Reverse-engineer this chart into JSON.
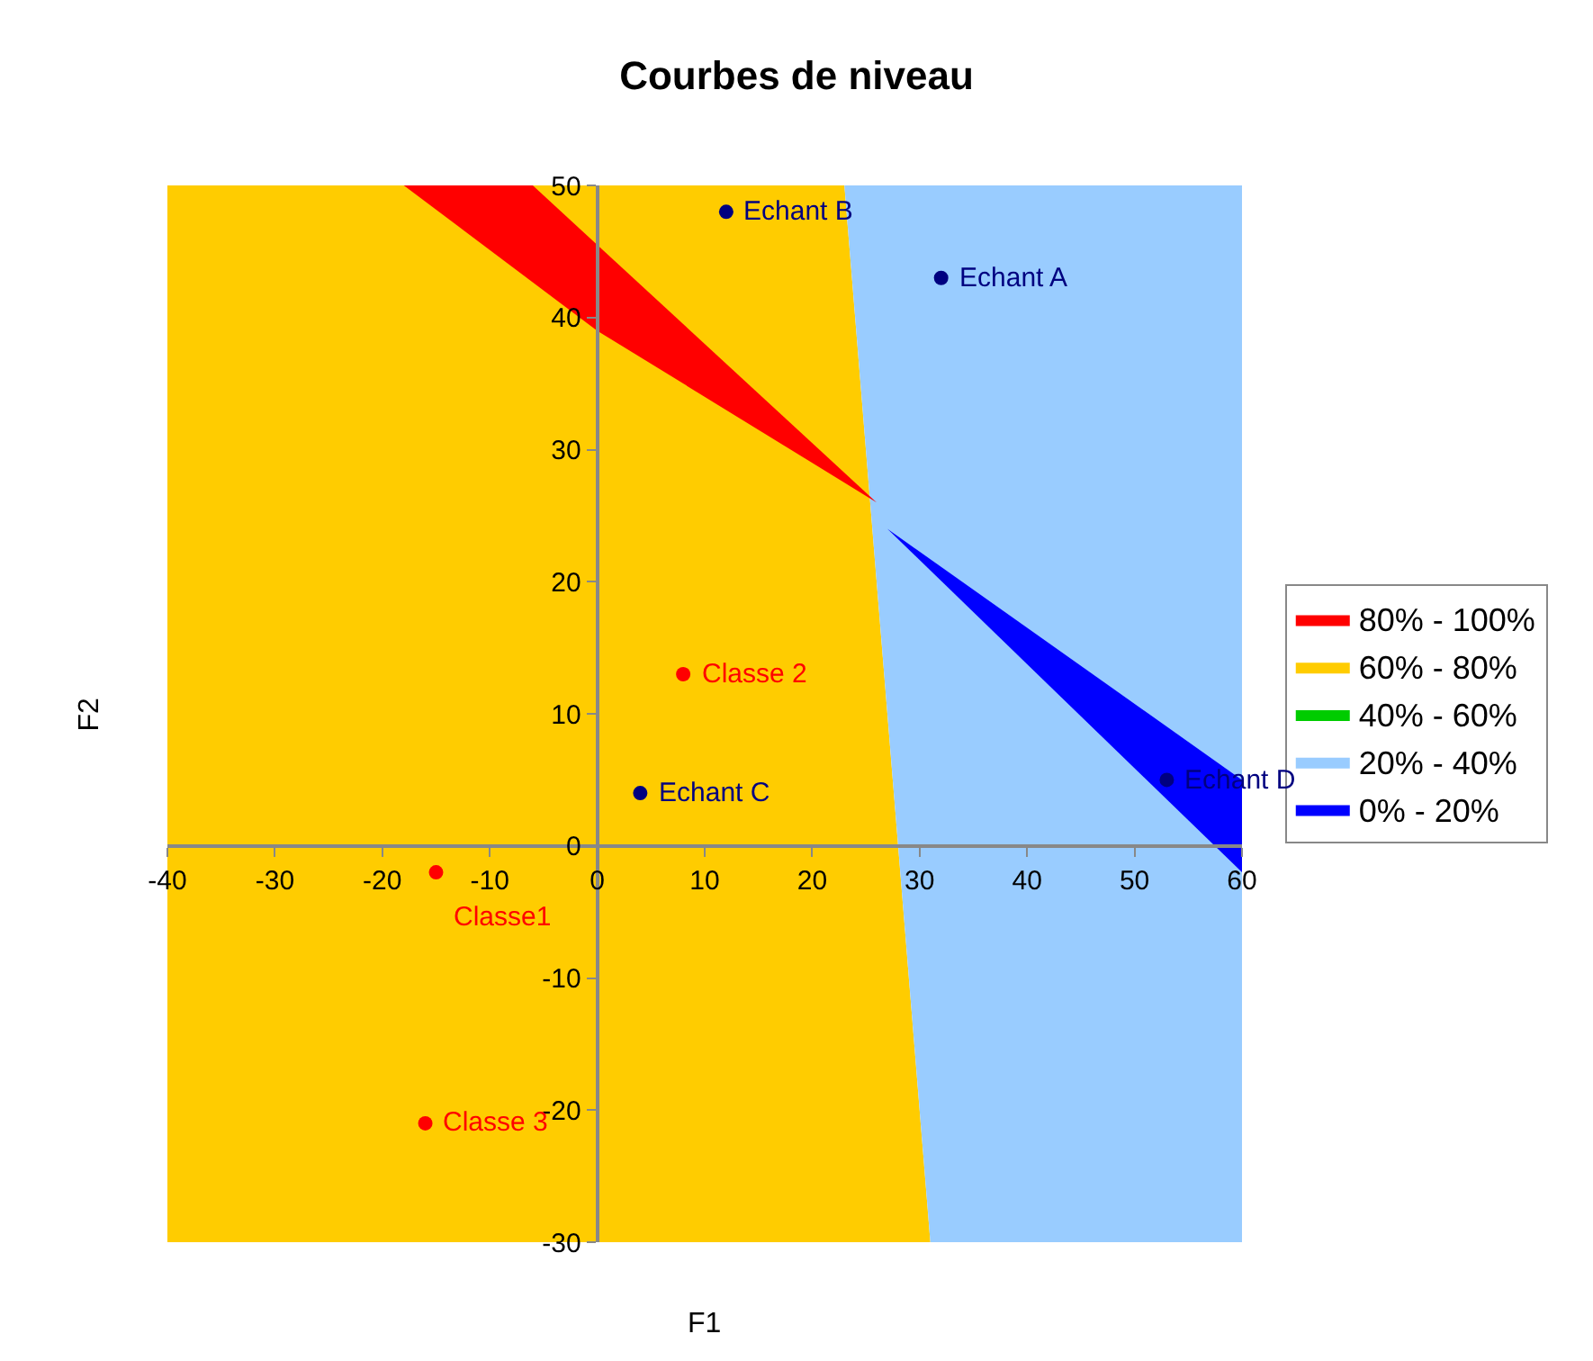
{
  "chart_data": {
    "type": "scatter",
    "title": "Courbes de niveau",
    "xlabel": "F1",
    "ylabel": "F2",
    "xlim": [
      -40,
      60
    ],
    "xticks": [
      -40,
      -30,
      -20,
      -10,
      0,
      10,
      20,
      30,
      40,
      50,
      60
    ],
    "ylim": [
      -30,
      50
    ],
    "yticks": [
      -30,
      -20,
      -10,
      0,
      10,
      20,
      30,
      40,
      50
    ],
    "legend": "right",
    "marker": "circle",
    "series": [
      {
        "name": "60% - 80%",
        "type": "area",
        "marker": "none",
        "color": "#ffcc00",
        "x": [
          -40,
          23,
          31,
          -40
        ],
        "values": [
          50,
          50,
          -30,
          -30
        ]
      },
      {
        "name": "20% - 40%",
        "type": "area",
        "marker": "none",
        "color": "#99ccff",
        "x": [
          23,
          60,
          60,
          31
        ],
        "values": [
          50,
          50,
          -30,
          -30
        ]
      },
      {
        "name": "80% - 100%",
        "type": "area",
        "marker": "none",
        "color": "#ff0000",
        "x": [
          -18,
          -6,
          26,
          0
        ],
        "values": [
          50,
          50,
          26,
          39
        ]
      },
      {
        "name": "40% - 60%",
        "type": "area",
        "marker": "none",
        "color": "#00cc00",
        "x": [
          null
        ],
        "values": [
          null
        ]
      },
      {
        "name": "0% - 20%",
        "type": "area",
        "marker": "none",
        "color": "#0000ff",
        "x": [
          27,
          60,
          60
        ],
        "values": [
          24,
          5,
          -2
        ]
      },
      {
        "color": "#000080",
        "x": [
          32,
          12,
          4,
          53
        ],
        "values": [
          43,
          48,
          4,
          5
        ]
      },
      {
        "color": "#ff0000",
        "x": [
          8,
          -15,
          -16
        ],
        "values": [
          13,
          -2,
          -21
        ]
      }
    ],
    "annotations": [
      {
        "text": "Echant A",
        "x": 32,
        "y": 43
      },
      {
        "text": "Echant B",
        "x": 12,
        "y": 48
      },
      {
        "text": "Echant C",
        "x": 4,
        "y": 4
      },
      {
        "text": "Echant D",
        "x": 53,
        "y": 5
      },
      {
        "text": "Classe 2",
        "x": 8,
        "y": 13
      },
      {
        "text": "Classe1",
        "x": -15,
        "y": -2
      },
      {
        "text": "Classe 3",
        "x": -16,
        "y": -21
      }
    ]
  }
}
